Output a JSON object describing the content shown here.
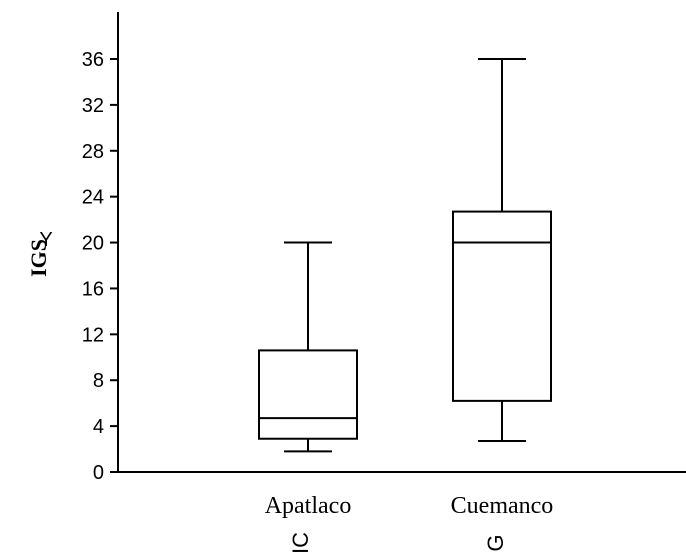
{
  "chart_data": {
    "type": "box",
    "title": "",
    "ylabel": "IGS",
    "ylabel_mark": "Y",
    "ylim": [
      0,
      40
    ],
    "yticks": [
      0,
      4,
      8,
      12,
      16,
      20,
      24,
      28,
      32,
      36
    ],
    "categories": [
      "Apatlaco",
      "Cuemanco"
    ],
    "boxes": [
      {
        "category": "Apatlaco",
        "min": 1.8,
        "q1": 2.9,
        "median": 4.7,
        "q3": 10.6,
        "max": 20
      },
      {
        "category": "Cuemanco",
        "min": 2.7,
        "q1": 6.2,
        "median": 20,
        "q3": 22.7,
        "max": 36
      }
    ],
    "grid": false,
    "legend": "none"
  },
  "bottom_fragments": [
    "IC",
    "G"
  ]
}
